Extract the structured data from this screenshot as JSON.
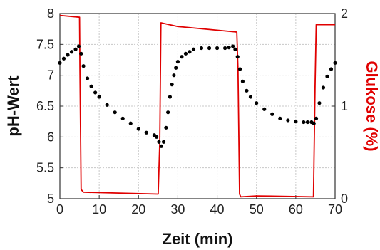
{
  "chart_data": {
    "type": "scatter",
    "title": "",
    "xlabel": "Zeit (min)",
    "ylabel_left": "pH-Wert",
    "ylabel_right": "Glukose (%)",
    "xlim": [
      0,
      70
    ],
    "ylim_left": [
      5,
      8
    ],
    "ylim_right": [
      0,
      2
    ],
    "x_ticks": [
      "0",
      "10",
      "20",
      "30",
      "40",
      "50",
      "60",
      "70"
    ],
    "y_left_ticks": [
      "5",
      "5.5",
      "6",
      "6.5",
      "7",
      "7.5",
      "8"
    ],
    "y_right_ticks": [
      "0",
      "1",
      "2"
    ],
    "grid": true,
    "colors": {
      "ph": "#000000",
      "glucose": "#e00000",
      "grid": "#c8c8c8"
    },
    "series": [
      {
        "axis": "left",
        "style": "dots",
        "x": [
          0,
          1,
          2,
          3,
          4,
          4.8,
          5.4,
          6,
          7,
          8,
          9,
          10,
          12,
          14,
          16,
          18,
          20,
          22,
          24,
          24.6,
          25.2,
          25.8,
          26.4,
          27,
          27.5,
          28,
          28.5,
          29,
          29.5,
          30,
          31,
          32,
          33,
          34,
          36,
          38,
          40,
          42,
          43,
          44,
          44.6,
          45.2,
          45.8,
          46.5,
          47.5,
          48.5,
          50,
          52,
          54,
          56,
          58,
          60,
          62,
          63,
          64,
          64.6,
          65.2,
          66,
          67,
          68,
          69,
          70
        ],
        "y": [
          7.2,
          7.27,
          7.33,
          7.38,
          7.42,
          7.47,
          7.35,
          7.15,
          6.95,
          6.82,
          6.72,
          6.65,
          6.52,
          6.4,
          6.3,
          6.22,
          6.13,
          6.07,
          6.03,
          6.0,
          5.92,
          5.85,
          5.92,
          6.15,
          6.4,
          6.65,
          6.85,
          7.0,
          7.12,
          7.22,
          7.3,
          7.35,
          7.38,
          7.42,
          7.44,
          7.44,
          7.44,
          7.44,
          7.45,
          7.47,
          7.42,
          7.3,
          7.1,
          6.9,
          6.75,
          6.65,
          6.55,
          6.45,
          6.37,
          6.3,
          6.27,
          6.25,
          6.24,
          6.24,
          6.24,
          6.22,
          6.3,
          6.55,
          6.8,
          6.98,
          7.1,
          7.2
        ]
      },
      {
        "axis": "right",
        "style": "line",
        "x": [
          0,
          5,
          5.1,
          5.4,
          6,
          25,
          25.4,
          25.7,
          30,
          45,
          45.3,
          45.7,
          46,
          50,
          64.5,
          64.9,
          65.2,
          70
        ],
        "y": [
          1.98,
          1.96,
          1.4,
          0.1,
          0.07,
          0.05,
          0.6,
          1.9,
          1.86,
          1.8,
          1.4,
          0.05,
          0.02,
          0.03,
          0.02,
          1.2,
          1.88,
          1.88
        ]
      }
    ]
  }
}
